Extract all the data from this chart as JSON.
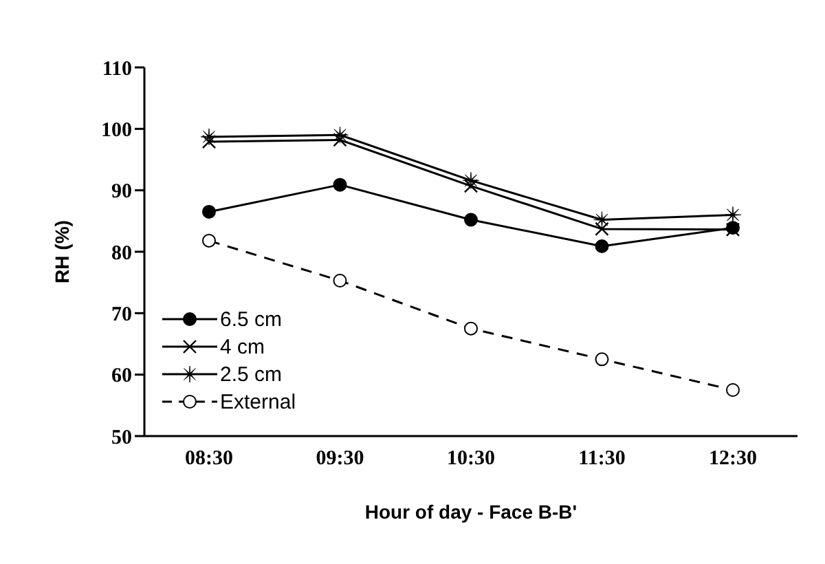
{
  "chart_data": {
    "type": "line",
    "xlabel": "Hour of day - Face B-B'",
    "ylabel": "RH (%)",
    "categories": [
      "08:30",
      "09:30",
      "10:30",
      "11:30",
      "12:30"
    ],
    "series": [
      {
        "name": "6.5 cm",
        "color": "#000000",
        "marker": "circle",
        "line_style": "solid",
        "values": [
          86.5,
          90.9,
          85.2,
          80.9,
          83.9
        ]
      },
      {
        "name": "4 cm",
        "color": "#000000",
        "marker": "cross",
        "line_style": "solid",
        "values": [
          97.9,
          98.2,
          90.7,
          83.7,
          83.6
        ]
      },
      {
        "name": "2.5 cm",
        "color": "#000000",
        "marker": "star",
        "line_style": "solid",
        "values": [
          98.7,
          99.0,
          91.6,
          85.2,
          86.0
        ]
      },
      {
        "name": "External",
        "color": "#000000",
        "marker": "circle",
        "line_style": "dashed",
        "values": [
          81.8,
          75.3,
          67.5,
          62.5,
          57.5
        ]
      }
    ],
    "ylim": [
      50,
      110
    ],
    "yticks": [
      50,
      60,
      70,
      80,
      90,
      100,
      110
    ],
    "grid": false,
    "legend": "bottom left"
  }
}
